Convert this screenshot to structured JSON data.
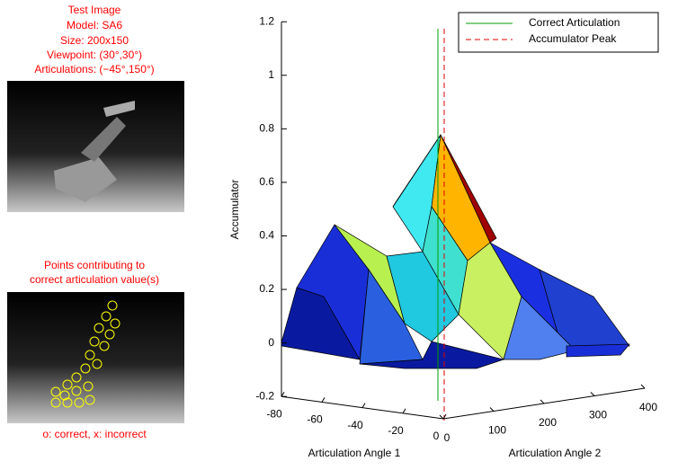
{
  "panels": [
    {
      "lines": [
        "Test Image",
        "Model: SA6",
        "Size: 200x150",
        "Viewpoint: (30°,30°)",
        "Articulations: (−45°,150°)"
      ]
    },
    {
      "lines": [
        "Points contributing to",
        "correct articulation value(s)"
      ],
      "caption": "o: correct, x: incorrect"
    }
  ],
  "chart_data": {
    "type": "surface",
    "xlabel": "Articulation Angle 1",
    "ylabel": "Articulation Angle 2",
    "zlabel": "Accumulator",
    "xlim": [
      -80,
      0
    ],
    "xticks": [
      -80,
      -60,
      -40,
      -20,
      0
    ],
    "ylim": [
      0,
      400
    ],
    "yticks": [
      0,
      100,
      200,
      300,
      400
    ],
    "zlim": [
      -0.2,
      1.2
    ],
    "zticks": [
      -0.2,
      0,
      0.2,
      0.4,
      0.6,
      0.8,
      1,
      1.2
    ],
    "series": [
      {
        "name": "Correct Articulation",
        "color": "#00a000"
      },
      {
        "name": "Accumulator Peak",
        "color": "#e00000"
      }
    ]
  }
}
